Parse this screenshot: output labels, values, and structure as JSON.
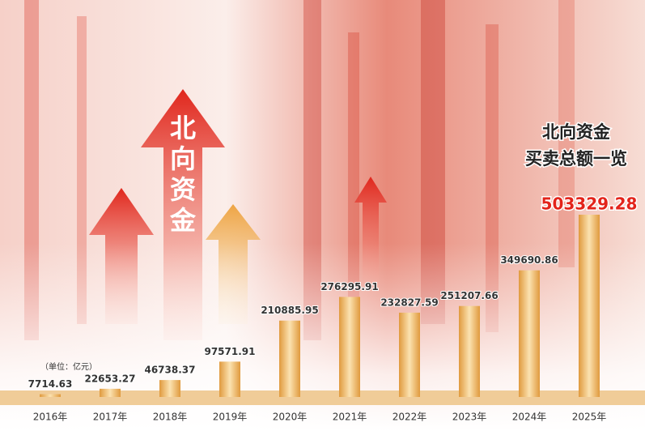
{
  "chart_data": {
    "type": "bar",
    "title": [
      "北向资金",
      "买卖总额一览"
    ],
    "badge": "北向资金",
    "unit": "（单位：亿元）",
    "categories": [
      "2016年",
      "2017年",
      "2018年",
      "2019年",
      "2020年",
      "2021年",
      "2022年",
      "2023年",
      "2024年",
      "2025年"
    ],
    "values": [
      7714.63,
      22653.27,
      46738.37,
      97571.91,
      210885.95,
      276295.91,
      232827.59,
      251207.66,
      349690.86,
      503329.28
    ],
    "color": "#e09a3e",
    "highlight_color": "#e3241b"
  }
}
